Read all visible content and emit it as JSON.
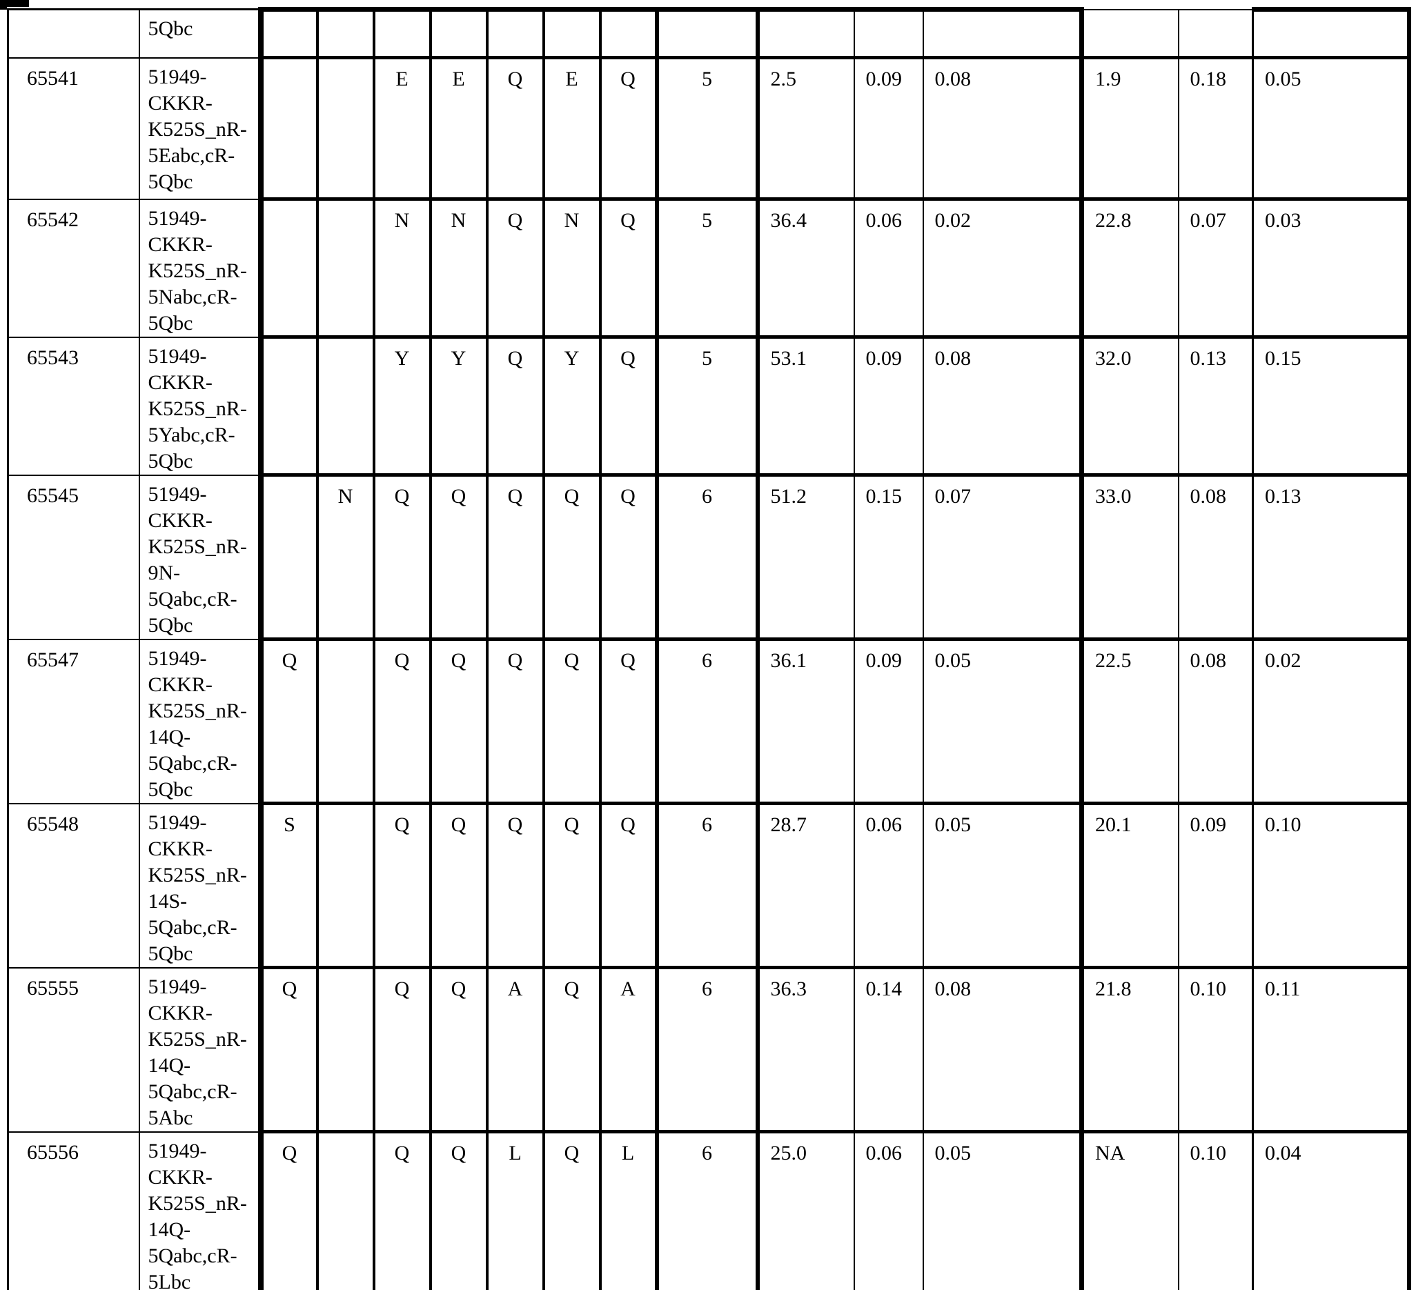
{
  "table": {
    "description_visible": false,
    "rows": [
      {
        "id": "",
        "name": "5Qbc",
        "name_lines": [
          "5Qbc"
        ],
        "letters": [
          "",
          "",
          "",
          "",
          "",
          "",
          ""
        ],
        "count": "",
        "values": [
          "",
          "",
          "",
          "",
          "",
          ""
        ]
      },
      {
        "id": "65541",
        "name": "51949-CKKR-K525S_nR-5Eabc,cR-5Qbc",
        "name_lines": [
          "51949-",
          "CKKR-",
          "K525S_nR-",
          "5Eabc,cR-",
          "5Qbc"
        ],
        "letters": [
          "",
          "",
          "E",
          "E",
          "Q",
          "E",
          "Q"
        ],
        "count": "5",
        "values": [
          "2.5",
          "0.09",
          "0.08",
          "1.9",
          "0.18",
          "0.05"
        ]
      },
      {
        "id": "65542",
        "name": "51949-CKKR-K525S_nR-5Nabc,cR-5Qbc",
        "name_lines": [
          "51949-",
          "CKKR-",
          "K525S_nR-",
          "5Nabc,cR-",
          "5Qbc"
        ],
        "letters": [
          "",
          "",
          "N",
          "N",
          "Q",
          "N",
          "Q"
        ],
        "count": "5",
        "values": [
          "36.4",
          "0.06",
          "0.02",
          "22.8",
          "0.07",
          "0.03"
        ]
      },
      {
        "id": "65543",
        "name": "51949-CKKR-K525S_nR-5Yabc,cR-5Qbc",
        "name_lines": [
          "51949-",
          "CKKR-",
          "K525S_nR-",
          "5Yabc,cR-",
          "5Qbc"
        ],
        "letters": [
          "",
          "",
          "Y",
          "Y",
          "Q",
          "Y",
          "Q"
        ],
        "count": "5",
        "values": [
          "53.1",
          "0.09",
          "0.08",
          "32.0",
          "0.13",
          "0.15"
        ]
      },
      {
        "id": "65545",
        "name": "51949-CKKR-K525S_nR-9N-5Qabc,cR-5Qbc",
        "name_lines": [
          "51949-",
          "CKKR-",
          "K525S_nR-",
          "9N-",
          "5Qabc,cR-",
          "5Qbc"
        ],
        "letters": [
          "",
          "N",
          "Q",
          "Q",
          "Q",
          "Q",
          "Q"
        ],
        "count": "6",
        "values": [
          "51.2",
          "0.15",
          "0.07",
          "33.0",
          "0.08",
          "0.13"
        ]
      },
      {
        "id": "65547",
        "name": "51949-CKKR-K525S_nR-14Q-5Qabc,cR-5Qbc",
        "name_lines": [
          "51949-",
          "CKKR-",
          "K525S_nR-",
          "14Q-",
          "5Qabc,cR-",
          "5Qbc"
        ],
        "letters": [
          "Q",
          "",
          "Q",
          "Q",
          "Q",
          "Q",
          "Q"
        ],
        "count": "6",
        "values": [
          "36.1",
          "0.09",
          "0.05",
          "22.5",
          "0.08",
          "0.02"
        ]
      },
      {
        "id": "65548",
        "name": "51949-CKKR-K525S_nR-14S-5Qabc,cR-5Qbc",
        "name_lines": [
          "51949-",
          "CKKR-",
          "K525S_nR-",
          "14S-",
          "5Qabc,cR-",
          "5Qbc"
        ],
        "letters": [
          "S",
          "",
          "Q",
          "Q",
          "Q",
          "Q",
          "Q"
        ],
        "count": "6",
        "values": [
          "28.7",
          "0.06",
          "0.05",
          "20.1",
          "0.09",
          "0.10"
        ]
      },
      {
        "id": "65555",
        "name": "51949-CKKR-K525S_nR-14Q-5Qabc,cR-5Abc",
        "name_lines": [
          "51949-",
          "CKKR-",
          "K525S_nR-",
          "14Q-",
          "5Qabc,cR-",
          "5Abc"
        ],
        "letters": [
          "Q",
          "",
          "Q",
          "Q",
          "A",
          "Q",
          "A"
        ],
        "count": "6",
        "values": [
          "36.3",
          "0.14",
          "0.08",
          "21.8",
          "0.10",
          "0.11"
        ]
      },
      {
        "id": "65556",
        "name": "51949-CKKR-K525S_nR-14Q-5Qabc,cR-5Lbc",
        "name_lines": [
          "51949-",
          "CKKR-",
          "K525S_nR-",
          "14Q-",
          "5Qabc,cR-",
          "5Lbc"
        ],
        "letters": [
          "Q",
          "",
          "Q",
          "Q",
          "L",
          "Q",
          "L"
        ],
        "count": "6",
        "values": [
          "25.0",
          "0.06",
          "0.05",
          "NA",
          "0.10",
          "0.04"
        ]
      }
    ]
  }
}
